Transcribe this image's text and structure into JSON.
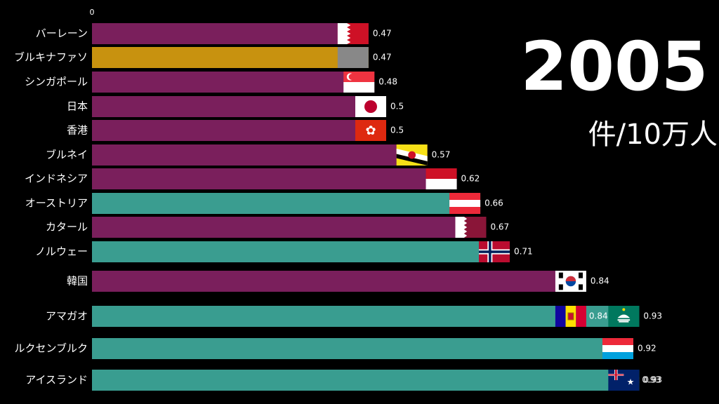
{
  "chart_data": {
    "type": "bar",
    "orientation": "horizontal",
    "title": "",
    "xlabel": "",
    "ylabel": "",
    "axis_tick_label": "0",
    "xlim": [
      0,
      1.0
    ],
    "year": "2005",
    "unit": "件/10万人",
    "colors": {
      "purple": "#7a1f5c",
      "teal": "#3a9d90",
      "gold": "#c8920f",
      "background": "#000000"
    },
    "bars": [
      {
        "label": "バーレーン",
        "value": 0.47,
        "value_label": "0.47",
        "color": "purple",
        "flag": "bahrain-flag-icon"
      },
      {
        "label": "ブルキナファソ",
        "value": 0.47,
        "value_label": "0.47",
        "color": "gold",
        "flag": "burkina-faso-flag-icon"
      },
      {
        "label": "シンガポール",
        "value": 0.48,
        "value_label": "0.48",
        "color": "purple",
        "flag": "singapore-flag-icon"
      },
      {
        "label": "日本",
        "value": 0.5,
        "value_label": "0.5",
        "color": "purple",
        "flag": "japan-flag-icon"
      },
      {
        "label": "香港",
        "value": 0.5,
        "value_label": "0.5",
        "color": "purple",
        "flag": "hong-kong-flag-icon"
      },
      {
        "label": "ブルネイ",
        "value": 0.57,
        "value_label": "0.57",
        "color": "purple",
        "flag": "brunei-flag-icon"
      },
      {
        "label": "インドネシア",
        "value": 0.62,
        "value_label": "0.62",
        "color": "purple",
        "flag": "indonesia-flag-icon"
      },
      {
        "label": "オーストリア",
        "value": 0.66,
        "value_label": "0.66",
        "color": "teal",
        "flag": "austria-flag-icon"
      },
      {
        "label": "カタール",
        "value": 0.67,
        "value_label": "0.67",
        "color": "purple",
        "flag": "qatar-flag-icon"
      },
      {
        "label": "ノルウェー",
        "value": 0.71,
        "value_label": "0.71",
        "color": "teal",
        "flag": "norway-flag-icon"
      },
      {
        "label": "韓国",
        "value": 0.84,
        "value_label": "0.84",
        "color": "purple",
        "flag": "korea-flag-icon"
      },
      {
        "label": "アマガオ",
        "value": 0.93,
        "value_label": "0.93",
        "color": "teal",
        "flag": "macau-flag-icon",
        "overlap": {
          "value": 0.84,
          "value_label": "0.84",
          "color": "teal",
          "flag": "andorra-flag-icon"
        }
      },
      {
        "label": "ルクセンブルク",
        "value": 0.92,
        "value_label": "0.92",
        "color": "teal",
        "flag": "luxembourg-flag-icon"
      },
      {
        "label": "アイスランド",
        "value": 0.93,
        "value_label": "0.93",
        "color": "teal",
        "flag": "iceland-flag-icon",
        "overlap": {
          "value": 0.93,
          "value_label": "0.93",
          "color": "teal",
          "flag": "australia-flag-icon"
        }
      }
    ]
  }
}
